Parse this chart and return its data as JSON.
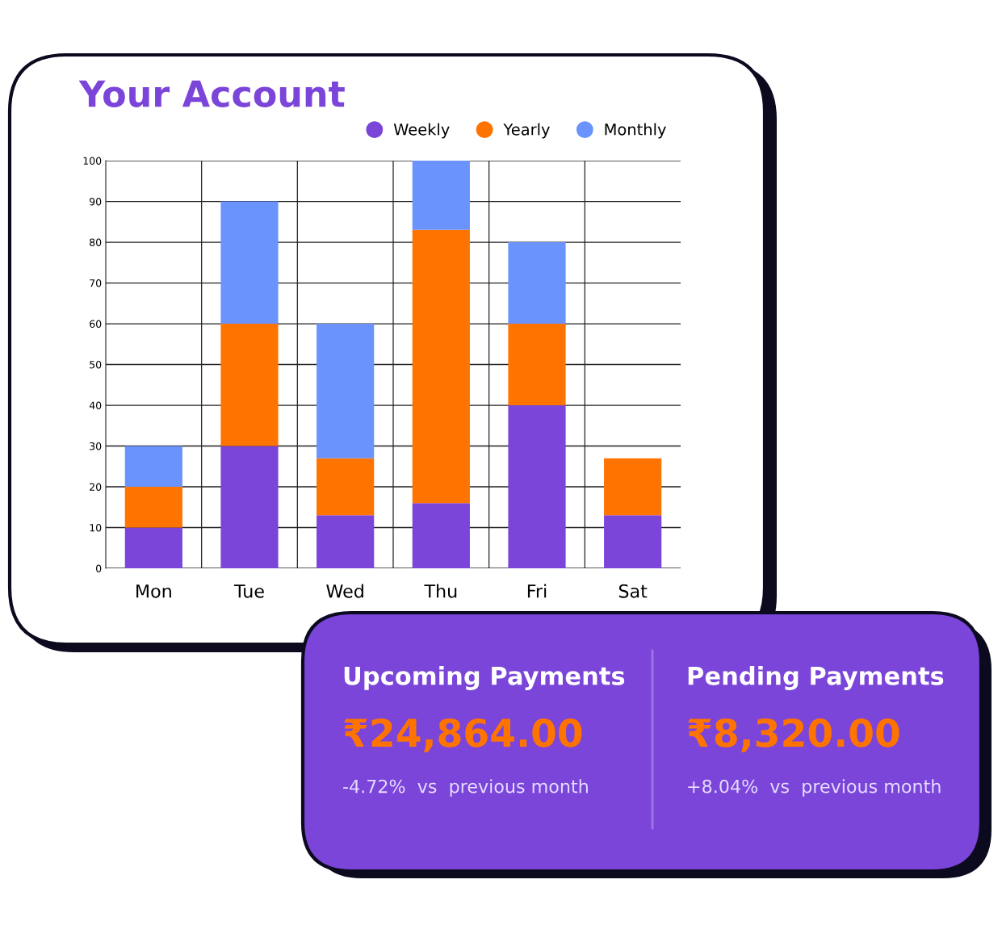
{
  "chart_data": [
    {
      "type": "bar",
      "title": "Your Account",
      "stacked": true,
      "categories": [
        "Mon",
        "Tue",
        "Wed",
        "Thu",
        "Fri",
        "Sat"
      ],
      "series": [
        {
          "name": "Weekly",
          "color": "#7b45d9",
          "values": [
            10,
            30,
            13,
            16,
            40,
            13
          ]
        },
        {
          "name": "Yearly",
          "color": "#ff7300",
          "values": [
            10,
            30,
            14,
            67,
            20,
            14
          ]
        },
        {
          "name": "Monthly",
          "color": "#6b93fd",
          "values": [
            10,
            30,
            33,
            17,
            20,
            0
          ]
        }
      ],
      "ylim": [
        0,
        100
      ],
      "yticks": [
        0,
        10,
        20,
        30,
        40,
        50,
        60,
        70,
        80,
        90,
        100
      ],
      "grid": true,
      "legend": "top right"
    },
    {
      "type": "other",
      "annotations": [
        "Upcoming Payments",
        "₹24,864.00",
        "-4.72%  vs  previous month",
        "Pending Payments",
        "₹8,320.00",
        "+8.04%  vs  previous month"
      ]
    }
  ]
}
